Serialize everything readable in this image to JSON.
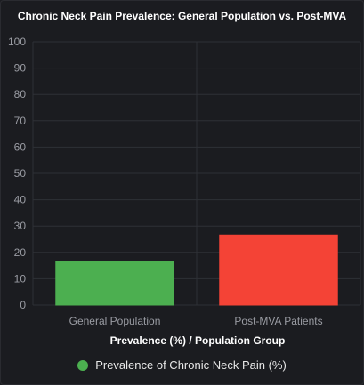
{
  "chart_data": {
    "type": "bar",
    "title": "Chronic Neck Pain Prevalence: General Population vs. Post-MVA",
    "xlabel": "Prevalence (%) / Population Group",
    "ylabel": "",
    "ylim": [
      0,
      100
    ],
    "yticks": [
      0,
      10,
      20,
      30,
      40,
      50,
      60,
      70,
      80,
      90,
      100
    ],
    "categories": [
      "General Population",
      "Post-MVA Patients"
    ],
    "series": [
      {
        "name": "Prevalence of Chronic Neck Pain (%)",
        "values": [
          16.7,
          26.6
        ],
        "colors": [
          "#4caf50",
          "#f44336"
        ],
        "legend_color": "#4caf50"
      }
    ],
    "grid": true,
    "legend_position": "bottom"
  }
}
